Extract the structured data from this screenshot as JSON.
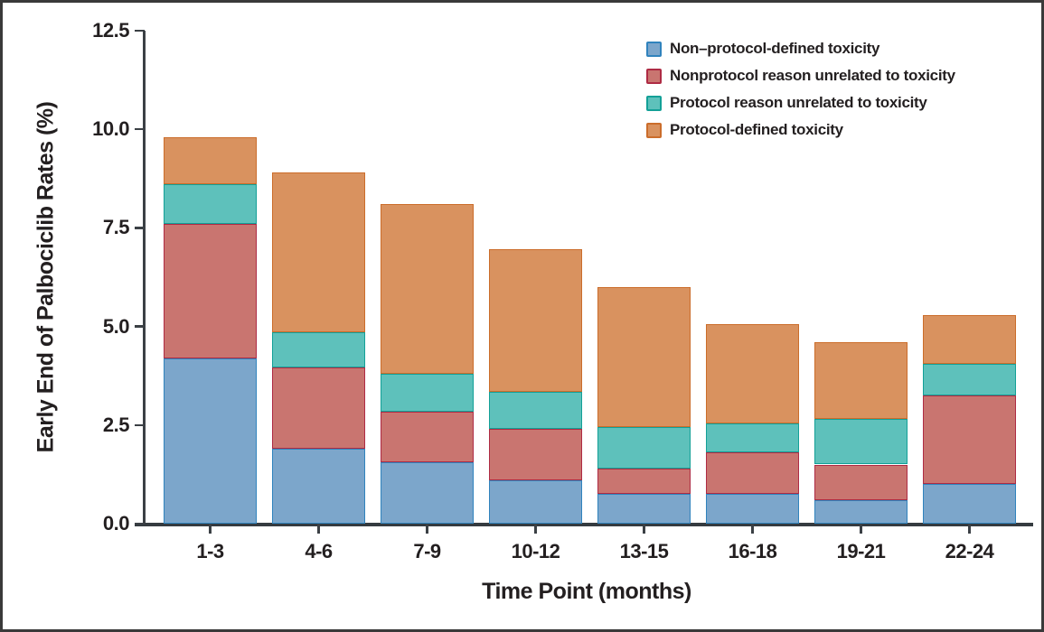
{
  "figure": {
    "background": "#ffffff",
    "frame_color": "#3a3a3a",
    "axis_color": "#3b4045",
    "text_color": "#231f20"
  },
  "chart_data": {
    "type": "bar",
    "stacked": true,
    "title": "",
    "xlabel": "Time Point (months)",
    "ylabel": "Early End of Palbociclib Rates (%)",
    "categories": [
      "1-3",
      "4-6",
      "7-9",
      "10-12",
      "13-15",
      "16-18",
      "19-21",
      "22-24"
    ],
    "series": [
      {
        "name": "Non–protocol-defined toxicity",
        "fill": "#7ca6cb",
        "border": "#3083bd",
        "values": [
          4.2,
          1.9,
          1.55,
          1.1,
          0.75,
          0.75,
          0.6,
          1.0
        ]
      },
      {
        "name": "Nonprotocol reason unrelated to toxicity",
        "fill": "#c97570",
        "border": "#ae2b44",
        "values": [
          3.4,
          2.05,
          1.3,
          1.3,
          0.65,
          1.05,
          0.9,
          2.25
        ]
      },
      {
        "name": "Protocol reason unrelated to toxicity",
        "fill": "#5ec1bb",
        "border": "#13a097",
        "values": [
          1.0,
          0.9,
          0.95,
          0.95,
          1.05,
          0.75,
          1.15,
          0.8
        ]
      },
      {
        "name": "Protocol-defined toxicity",
        "fill": "#d9925f",
        "border": "#cb6d2b",
        "values": [
          1.2,
          4.05,
          4.3,
          3.6,
          3.55,
          2.5,
          1.95,
          1.25
        ]
      }
    ],
    "stack_totals": [
      9.8,
      8.9,
      8.1,
      6.95,
      6.0,
      5.05,
      4.6,
      5.3
    ],
    "y_ticks": [
      "0.0",
      "2.5",
      "5.0",
      "7.5",
      "10.0",
      "12.5"
    ],
    "ylim": [
      0,
      12.5
    ],
    "grid": false,
    "legend_position": "top-right"
  }
}
